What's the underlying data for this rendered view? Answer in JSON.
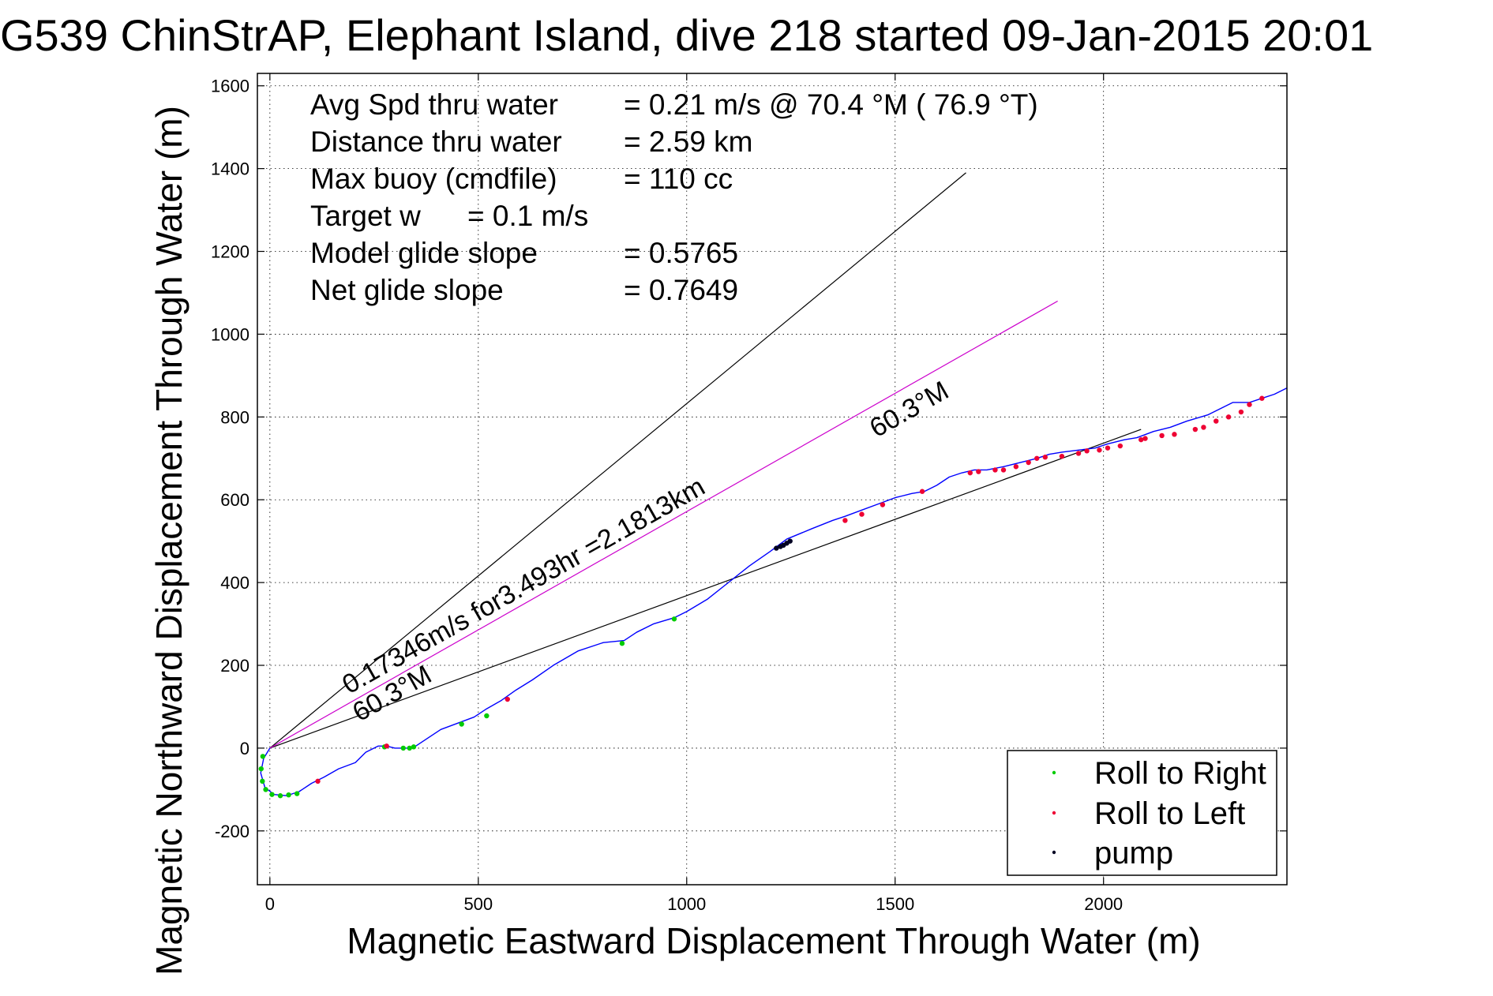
{
  "chart_data": {
    "type": "line",
    "title": "G539 ChinStrAP, Elephant Island, dive 218 started 09-Jan-2015 20:01",
    "xlabel": "Magnetic Eastward Displacement Through Water (m)",
    "ylabel": "Magnetic Northward Displacement Through Water (m)",
    "xlim": [
      -30,
      2440
    ],
    "ylim": [
      -330,
      1630
    ],
    "xticks": [
      0,
      500,
      1000,
      1500,
      2000
    ],
    "yticks": [
      -200,
      0,
      200,
      400,
      600,
      800,
      1000,
      1200,
      1400,
      1600
    ],
    "grid": true,
    "legend_position": "lower-right",
    "stats": [
      {
        "label": "Avg Spd thru water",
        "value": "=  0.21 m/s @  70.4 °M ( 76.9 °T)"
      },
      {
        "label": "Distance thru water",
        "value": "=  2.59 km"
      },
      {
        "label": "Max buoy (cmdfile)",
        "value": "= 110 cc"
      },
      {
        "label": "Target w",
        "value": "= 0.1 m/s"
      },
      {
        "label": "Model glide slope",
        "value": "= 0.5765"
      },
      {
        "label": "Net glide slope",
        "value": "= 0.7649"
      }
    ],
    "annotations": [
      {
        "text": "0.17346m/s for3.493hr =2.1813km"
      },
      {
        "text": "60.3°M"
      },
      {
        "text": "60.3°M"
      }
    ],
    "reference_lines": [
      {
        "name": "upper-bound",
        "color": "#000000",
        "x": [
          0,
          1670
        ],
        "y": [
          0,
          1390
        ]
      },
      {
        "name": "lower-bound",
        "color": "#000000",
        "x": [
          0,
          2090
        ],
        "y": [
          0,
          770
        ]
      },
      {
        "name": "net-heading",
        "color": "#cc00cc",
        "x": [
          0,
          1890
        ],
        "y": [
          0,
          1080
        ]
      }
    ],
    "series": [
      {
        "color": "#0000ff",
        "x": [
          0,
          -15,
          -22,
          -12,
          10,
          40,
          70,
          100,
          130,
          165,
          205,
          230,
          260,
          280,
          300,
          330,
          350,
          380,
          410,
          450,
          490,
          520,
          555,
          590,
          630,
          680,
          740,
          800,
          850,
          880,
          920,
          970,
          1000,
          1050,
          1100,
          1150,
          1200,
          1240,
          1300,
          1350,
          1380,
          1420,
          1460,
          1500,
          1540,
          1570,
          1600,
          1630,
          1660,
          1690,
          1720,
          1760,
          1800,
          1840,
          1870,
          1900,
          1940,
          1980,
          2010,
          2050,
          2080,
          2120,
          2160,
          2200,
          2250,
          2280,
          2310,
          2350,
          2380,
          2410,
          2440
        ],
        "y": [
          0,
          -25,
          -60,
          -95,
          -112,
          -115,
          -105,
          -85,
          -70,
          -50,
          -35,
          -10,
          5,
          5,
          0,
          0,
          5,
          25,
          45,
          60,
          75,
          95,
          115,
          140,
          165,
          200,
          235,
          255,
          260,
          280,
          300,
          315,
          330,
          360,
          400,
          440,
          475,
          505,
          530,
          550,
          560,
          575,
          590,
          605,
          615,
          620,
          635,
          655,
          665,
          672,
          672,
          680,
          690,
          700,
          710,
          715,
          720,
          725,
          735,
          745,
          750,
          765,
          775,
          790,
          805,
          820,
          835,
          835,
          845,
          855,
          870
        ]
      }
    ],
    "markers": [
      {
        "name": "Roll to Right",
        "color": "#00cc00",
        "x": [
          -17,
          -21,
          -18,
          -10,
          5,
          25,
          45,
          65,
          275,
          320,
          335,
          345,
          460,
          520,
          845,
          970
        ],
        "y": [
          -20,
          -50,
          -80,
          -100,
          -112,
          -115,
          -113,
          -110,
          3,
          0,
          0,
          3,
          58,
          78,
          253,
          312
        ]
      },
      {
        "name": "Roll to Left",
        "color": "#ee0033",
        "x": [
          115,
          280,
          570,
          1380,
          1420,
          1470,
          1565,
          1680,
          1700,
          1740,
          1760,
          1790,
          1820,
          1840,
          1860,
          1900,
          1940,
          1960,
          1990,
          2010,
          2040,
          2090,
          2100,
          2140,
          2170,
          2220,
          2240,
          2270,
          2300,
          2330,
          2350,
          2380
        ],
        "y": [
          -80,
          5,
          118,
          550,
          565,
          588,
          620,
          665,
          668,
          672,
          672,
          680,
          690,
          700,
          703,
          705,
          712,
          718,
          720,
          725,
          730,
          745,
          748,
          755,
          758,
          770,
          775,
          790,
          800,
          812,
          830,
          845
        ]
      },
      {
        "name": "pump",
        "color": "#000022",
        "x": [
          1215,
          1225,
          1232,
          1240,
          1248
        ],
        "y": [
          483,
          487,
          490,
          495,
          500
        ]
      }
    ]
  }
}
